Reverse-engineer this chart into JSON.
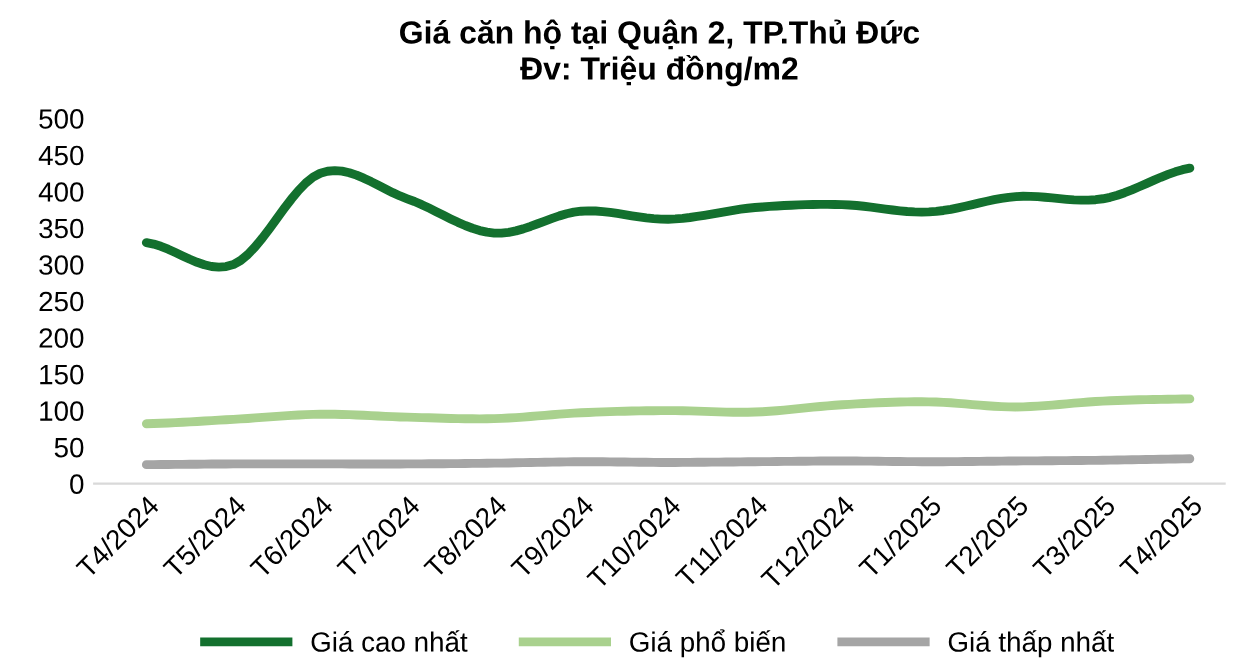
{
  "chart_data": {
    "type": "line",
    "title": "Giá căn hộ tại Quận 2, TP.Thủ Đức\nĐv: Triệu đồng/m2",
    "categories": [
      "T4/2024",
      "T5/2024",
      "T6/2024",
      "T7/2024",
      "T8/2024",
      "T9/2024",
      "T10/2024",
      "T11/2024",
      "T12/2024",
      "T1/2025",
      "T2/2025",
      "T3/2025",
      "T4/2025"
    ],
    "series": [
      {
        "name": "Giá cao nhất",
        "color": "#13702e",
        "values": [
          330,
          300,
          425,
          390,
          343,
          373,
          362,
          378,
          382,
          372,
          393,
          390,
          432
        ]
      },
      {
        "name": "Giá phổ biến",
        "color": "#a9d18e",
        "values": [
          82,
          88,
          95,
          91,
          89,
          97,
          100,
          98,
          108,
          112,
          105,
          113,
          116
        ]
      },
      {
        "name": "Giá thấp nhất",
        "color": "#a5a5a5",
        "values": [
          26,
          27,
          27,
          27,
          28,
          30,
          29,
          30,
          31,
          30,
          31,
          32,
          34
        ]
      }
    ],
    "ylim": [
      0,
      500
    ],
    "yticks": [
      0,
      50,
      100,
      150,
      200,
      250,
      300,
      350,
      400,
      450,
      500
    ],
    "grid": false,
    "legend": "bottom",
    "marker": "none",
    "line_style": "solid"
  }
}
